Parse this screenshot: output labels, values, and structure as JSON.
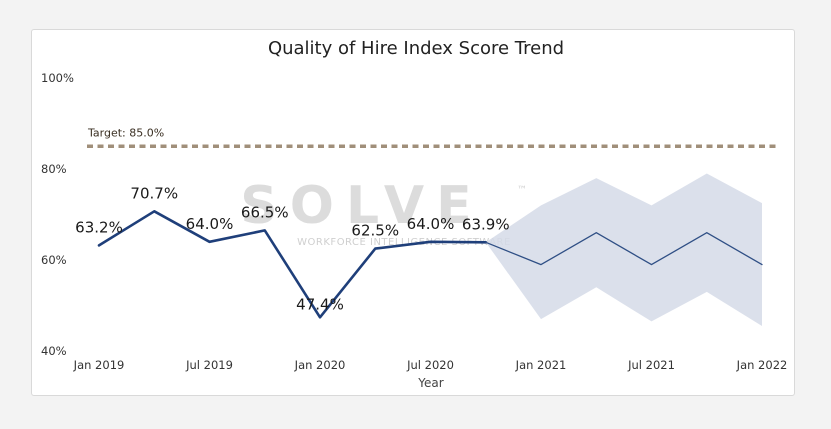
{
  "chart_data": {
    "type": "line",
    "title": "Quality of Hire Index Score Trend",
    "xlabel": "Year",
    "ylabel": "",
    "ylim": [
      40,
      100
    ],
    "y_ticks": [
      "100%",
      "80%",
      "60%",
      "40%"
    ],
    "y_tick_values": [
      100,
      80,
      60,
      40
    ],
    "x_ticks": [
      "Jan 2019",
      "Jul 2019",
      "Jan 2020",
      "Jul 2020",
      "Jan 2021",
      "Jul 2021",
      "Jan 2022"
    ],
    "x_tick_values": [
      "2019-01",
      "2019-07",
      "2020-01",
      "2020-07",
      "2021-01",
      "2021-07",
      "2022-01"
    ],
    "grid": false,
    "target": {
      "label": "Target: 85.0%",
      "value": 85.0,
      "color": "#a08f7a"
    },
    "series": [
      {
        "kind": "actual",
        "color": "#1f3f7a",
        "x": [
          "2019-01",
          "2019-04",
          "2019-07",
          "2019-10",
          "2020-01",
          "2020-04",
          "2020-07",
          "2020-10"
        ],
        "values": [
          63.2,
          70.7,
          64.0,
          66.5,
          47.4,
          62.5,
          64.0,
          63.9
        ],
        "labels": [
          "63.2%",
          "70.7%",
          "64.0%",
          "66.5%",
          "47.4%",
          "62.5%",
          "64.0%",
          "63.9%"
        ]
      },
      {
        "kind": "forecast",
        "color": "#2f4f85",
        "band_color": "#d5dbe7",
        "x": [
          "2020-10",
          "2021-01",
          "2021-04",
          "2021-07",
          "2021-10",
          "2022-01"
        ],
        "values": [
          63.9,
          59,
          66,
          59,
          66,
          59
        ],
        "upper": [
          63.9,
          72,
          78,
          72,
          79,
          72.5
        ],
        "lower": [
          63.9,
          47,
          54,
          46.5,
          53,
          45.5
        ]
      }
    ]
  },
  "watermark": {
    "brand": "SOLVE",
    "trademark": "™",
    "tagline": "WORKFORCE INTELLIGENCE SOFTWARE"
  }
}
